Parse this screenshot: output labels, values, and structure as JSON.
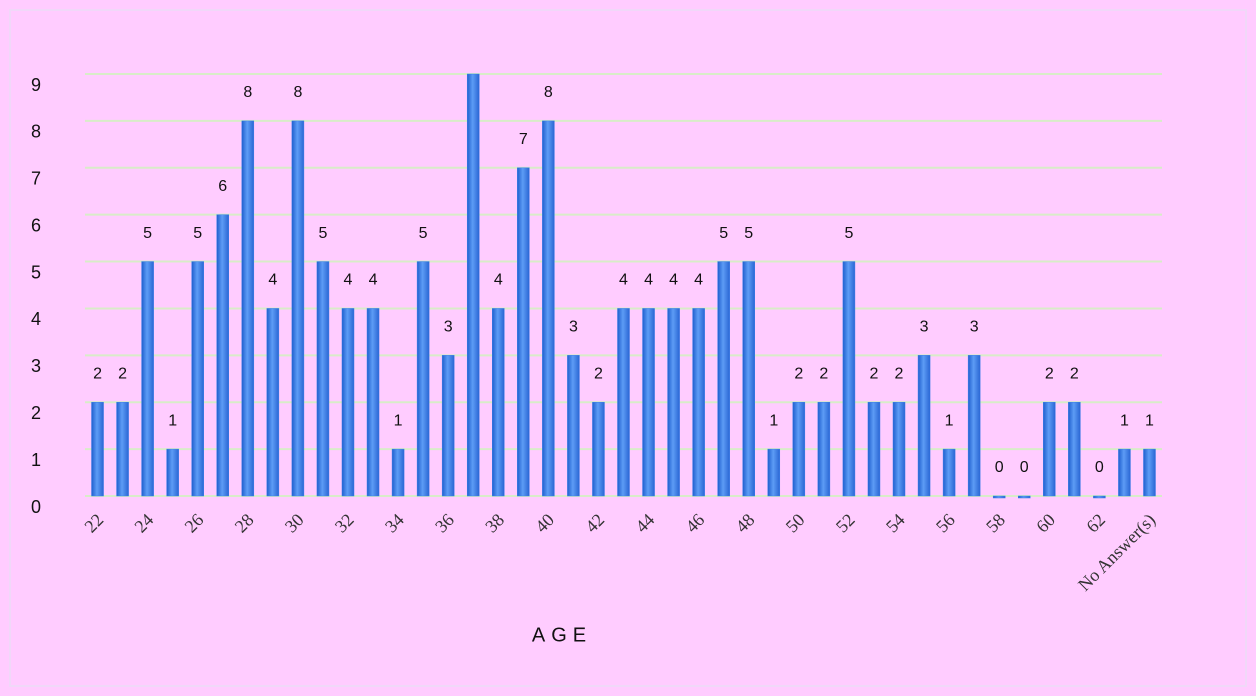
{
  "chart_data": {
    "type": "bar",
    "x_label": "AGE",
    "categories": [
      "22",
      null,
      "24",
      null,
      "26",
      null,
      "28",
      null,
      "30",
      null,
      "32",
      null,
      "34",
      null,
      "36",
      null,
      "38",
      null,
      "40",
      null,
      "42",
      null,
      "44",
      null,
      "46",
      null,
      "48",
      null,
      "50",
      null,
      "52",
      null,
      "54",
      null,
      "56",
      null,
      "58",
      null,
      "60",
      null,
      "62",
      null,
      "No Answer(s)"
    ],
    "values": [
      2,
      2,
      5,
      1,
      5,
      6,
      8,
      4,
      8,
      5,
      4,
      4,
      1,
      5,
      3,
      9,
      4,
      7,
      8,
      3,
      2,
      4,
      4,
      4,
      4,
      5,
      5,
      1,
      2,
      2,
      5,
      2,
      2,
      3,
      1,
      3,
      0,
      0,
      2,
      2,
      0,
      1,
      1
    ],
    "value_labels": [
      "2",
      "2",
      "5",
      "1",
      "5",
      "6",
      "8",
      "4",
      "8",
      "5",
      "4",
      "4",
      "1",
      "5",
      "3",
      null,
      "4",
      "7",
      "8",
      "3",
      "2",
      "4",
      "4",
      "4",
      "4",
      "5",
      "5",
      "1",
      "2",
      "2",
      "5",
      "2",
      "2",
      "3",
      "1",
      "3",
      "0",
      "0",
      "2",
      "2",
      "0",
      "1",
      "1"
    ],
    "color": "#3a7ee6",
    "ylim": [
      0,
      9
    ],
    "yticks": [
      0,
      1,
      2,
      3,
      4,
      5,
      6,
      7,
      8,
      9
    ],
    "grid": true
  }
}
